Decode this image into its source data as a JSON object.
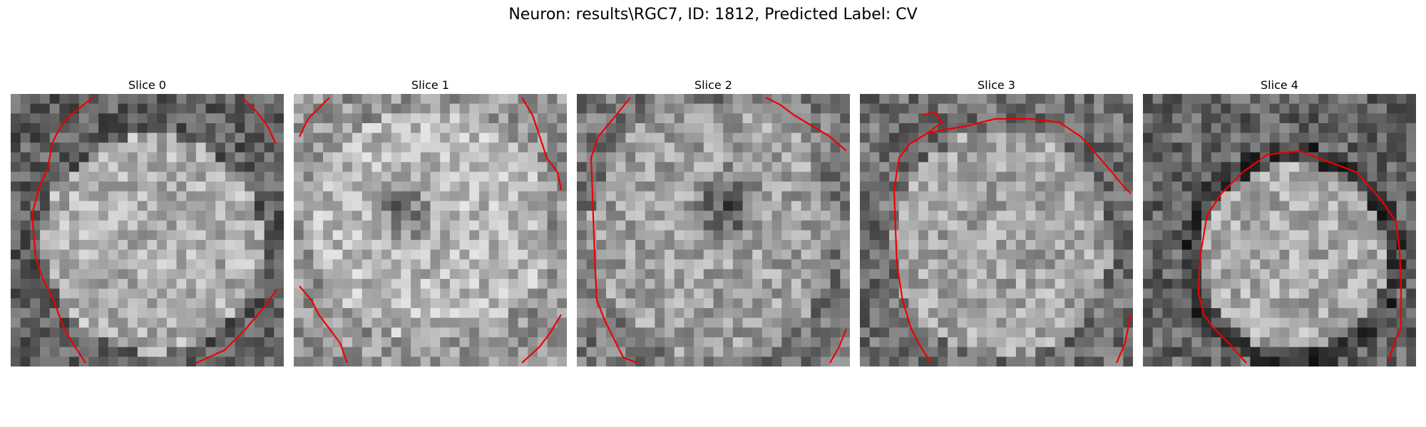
{
  "figure": {
    "title": "Neuron: results\\RGC7, ID: 1812, Predicted Label: CV"
  },
  "slices": [
    {
      "title": "Slice 0"
    },
    {
      "title": "Slice 1"
    },
    {
      "title": "Slice 2"
    },
    {
      "title": "Slice 3"
    },
    {
      "title": "Slice 4"
    }
  ],
  "colors": {
    "contour": "#ee0000"
  }
}
